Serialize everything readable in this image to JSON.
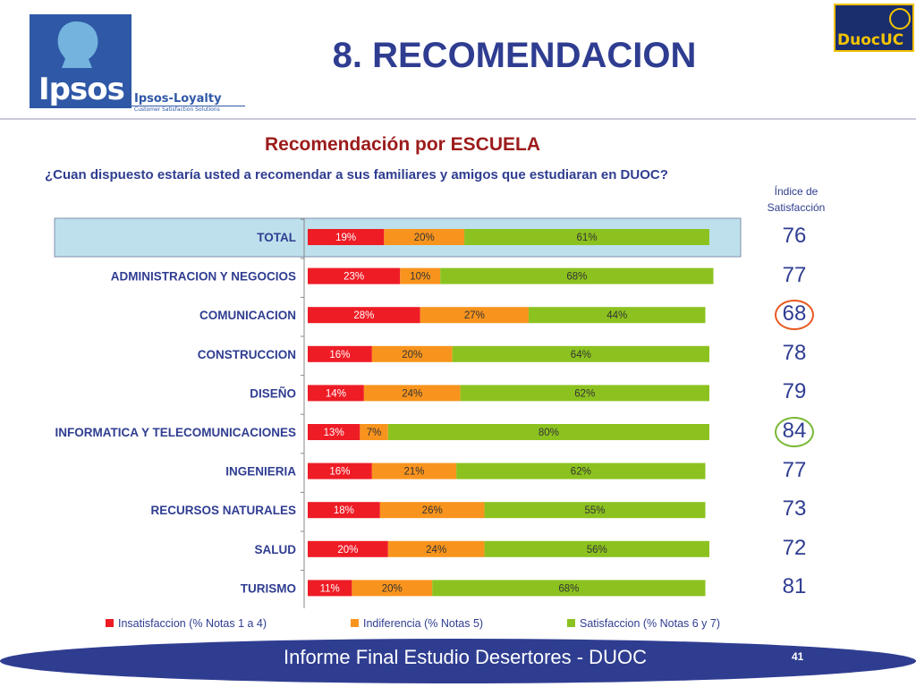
{
  "header": {
    "title": "8. RECOMENDACION",
    "brand": "Ipsos",
    "brand_sub": "Ipsos-Loyalty",
    "brand_sub2": "Customer Satisfaction Solutions",
    "partner_logo": "DuocUC"
  },
  "subtitle": "Recomendación  por ESCUELA",
  "question": "¿Cuan dispuesto estaría usted a recomendar a sus familiares y amigos que estudiaran en DUOC?",
  "index_label": "Índice de Satisfacción",
  "index_values": [
    "76",
    "77",
    "68",
    "78",
    "79",
    "84",
    "77",
    "73",
    "72",
    "81"
  ],
  "highlight": {
    "low_index": "68",
    "low_color": "#e8581e",
    "high_index": "84",
    "high_color": "#78b832"
  },
  "colors": {
    "insat": "#ee1c25",
    "indif": "#f8941d",
    "sat": "#8cc21f",
    "title_blue": "#2f3d91",
    "subtitle_red": "#9c1b1b"
  },
  "footer": {
    "text": "Informe Final Estudio Desertores - DUOC",
    "page": "41"
  },
  "chart_data": {
    "type": "bar",
    "stacked": true,
    "orientation": "horizontal",
    "categories": [
      "TOTAL",
      "ADMINISTRACION Y NEGOCIOS",
      "COMUNICACION",
      "CONSTRUCCION",
      "DISEÑO",
      "INFORMATICA Y TELECOMUNICACIONES",
      "INGENIERIA",
      "RECURSOS NATURALES",
      "SALUD",
      "TURISMO"
    ],
    "series": [
      {
        "name": "Insatisfaccion (% Notas 1 a 4)",
        "values": [
          19,
          23,
          28,
          16,
          14,
          13,
          16,
          18,
          20,
          11
        ]
      },
      {
        "name": "Indiferencia (% Notas 5)",
        "values": [
          20,
          10,
          27,
          20,
          24,
          7,
          21,
          26,
          24,
          20
        ]
      },
      {
        "name": "Satisfaccion (% Notas 6 y 7)",
        "values": [
          61,
          68,
          44,
          64,
          62,
          80,
          62,
          55,
          56,
          68
        ]
      }
    ],
    "legend": "bottom"
  }
}
